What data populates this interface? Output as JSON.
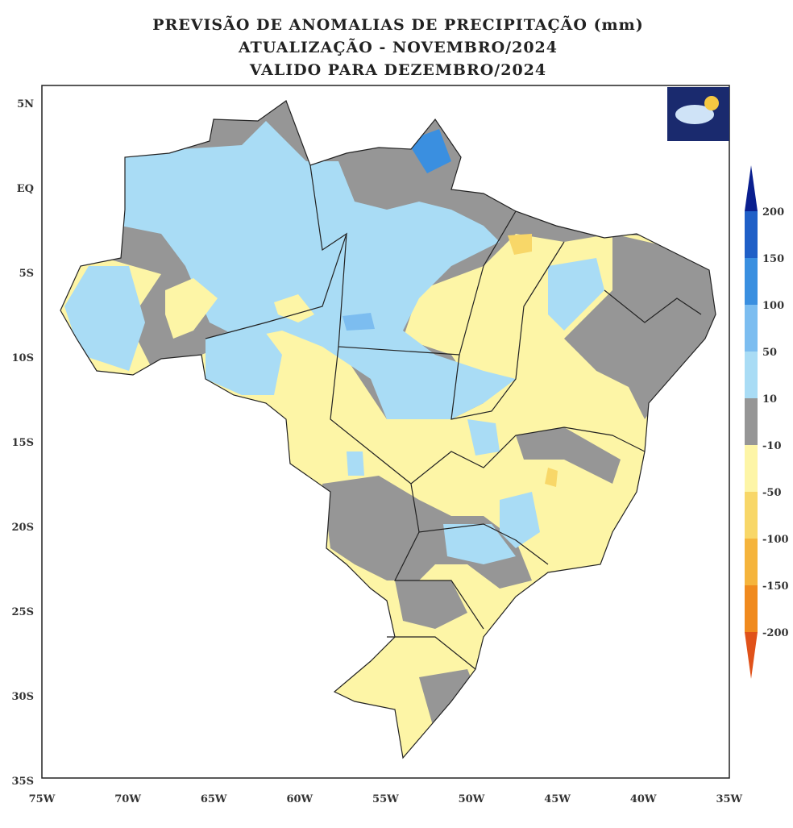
{
  "header": {
    "title_lines": [
      "PREVISÃO DE ANOMALIAS DE PRECIPITAÇÃO (mm)",
      "ATUALIZAÇÃO - NOVEMBRO/2024",
      "VALIDO PARA DEZEMBRO/2024"
    ]
  },
  "axes": {
    "lat_labels": [
      "5N",
      "EQ",
      "5S",
      "10S",
      "15S",
      "20S",
      "25S",
      "30S",
      "35S"
    ],
    "lon_labels": [
      "75W",
      "70W",
      "65W",
      "60W",
      "55W",
      "50W",
      "45W",
      "40W",
      "35W"
    ]
  },
  "colorbar": {
    "labels": [
      "200",
      "150",
      "100",
      "50",
      "10",
      "-10",
      "-50",
      "-100",
      "-150",
      "-200"
    ]
  }
}
